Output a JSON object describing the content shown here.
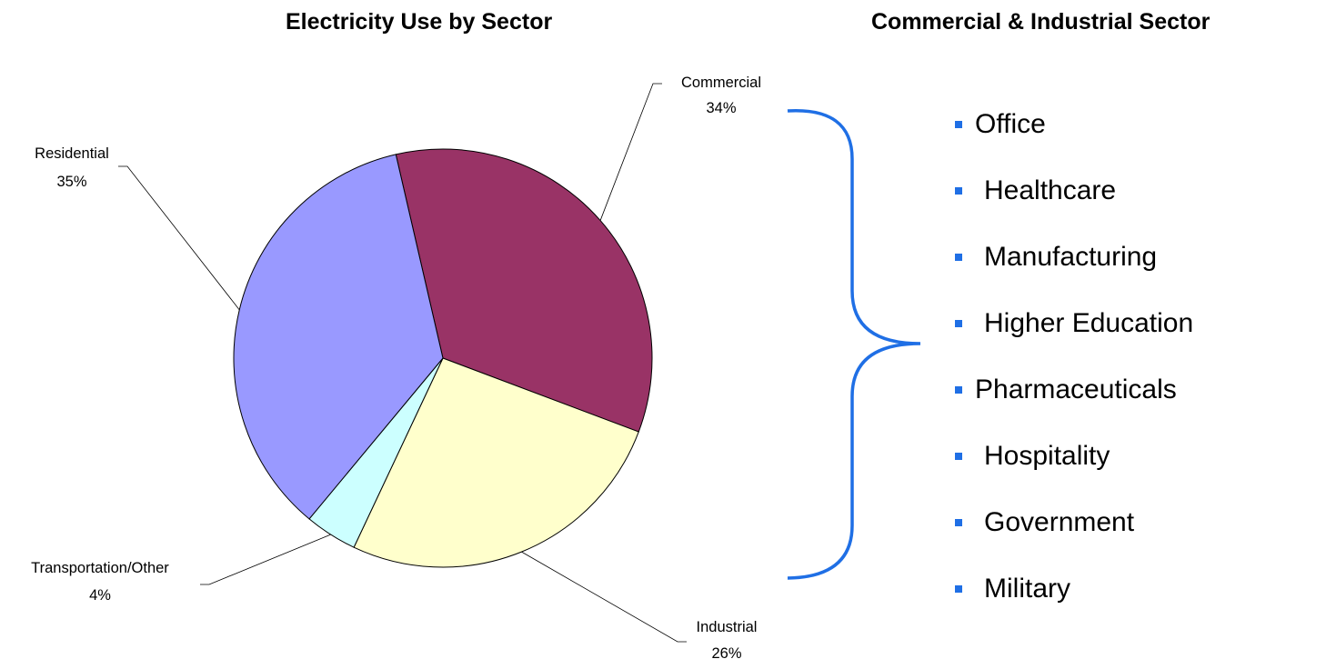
{
  "chart_data": {
    "type": "pie",
    "title": "Electricity Use by Sector",
    "slices": [
      {
        "label": "Commercial",
        "percent_label": "34%",
        "value": 34,
        "color": "#993366"
      },
      {
        "label": "Industrial",
        "percent_label": "26%",
        "value": 26,
        "color": "#ffffcc"
      },
      {
        "label": "Transportation/Other",
        "percent_label": "4%",
        "value": 4,
        "color": "#ccffff"
      },
      {
        "label": "Residential",
        "percent_label": "35%",
        "value": 35,
        "color": "#9999ff"
      }
    ]
  },
  "sector_panel": {
    "title": "Commercial & Industrial Sector",
    "bullet_color": "#1f6fe5",
    "brace_color": "#1f6fe5",
    "items": [
      "Office",
      "Healthcare",
      "Manufacturing",
      "Higher Education",
      "Pharmaceuticals",
      "Hospitality",
      "Government",
      "Military"
    ]
  }
}
